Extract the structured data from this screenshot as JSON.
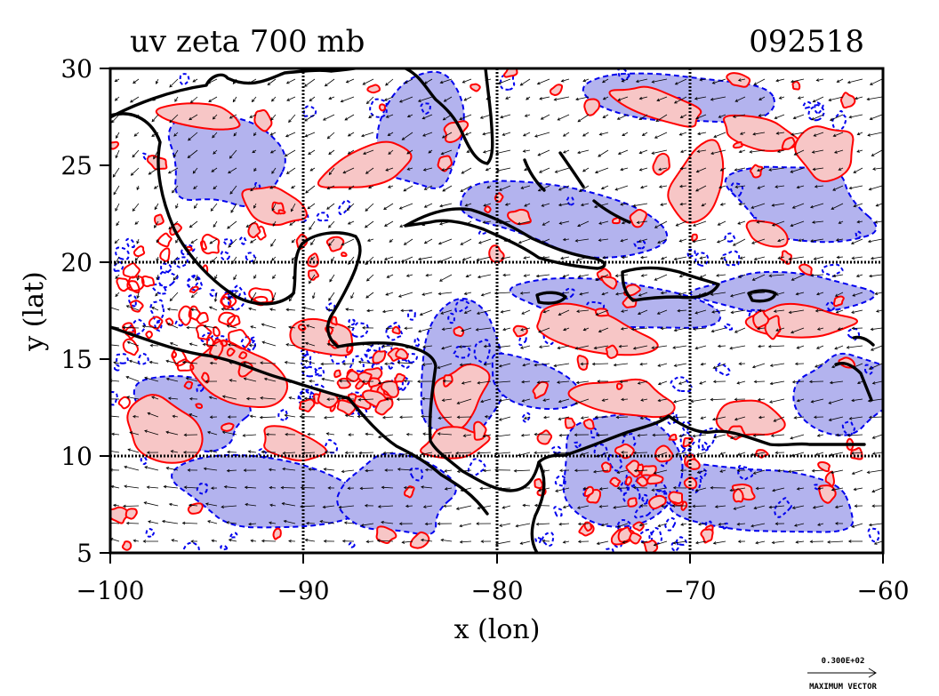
{
  "chart_data": {
    "type": "map",
    "title": "uv zeta 700 mb",
    "date_code": "092518",
    "xlabel": "x (lon)",
    "ylabel": "y (lat)",
    "xlim": [
      -100,
      -60
    ],
    "ylim": [
      5,
      30
    ],
    "x_ticks": [
      -100,
      -90,
      -80,
      -70,
      -60
    ],
    "x_tick_labels": [
      "−100",
      "−90",
      "−80",
      "−70",
      "−60"
    ],
    "y_ticks": [
      5,
      10,
      15,
      20,
      25,
      30
    ],
    "y_tick_labels": [
      "5",
      "10",
      "15",
      "20",
      "25",
      "30"
    ],
    "gridlines_lon": [
      -90,
      -80,
      -70
    ],
    "gridlines_lat": [
      10,
      20
    ],
    "grid": true,
    "vector_legend": {
      "value": "0.300E+02",
      "label": "MAXIMUM VECTOR"
    },
    "colors": {
      "positive_fill": "#f7c6c6",
      "positive_line": "#ff0000",
      "negative_fill": "#b3b3ee",
      "negative_line": "#0000ee",
      "coast": "#000000"
    }
  }
}
